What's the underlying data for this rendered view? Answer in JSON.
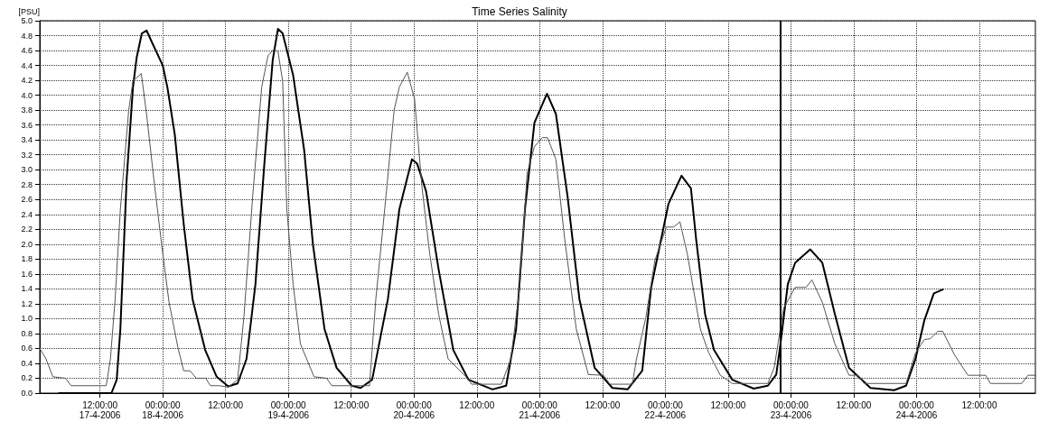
{
  "chart_data": {
    "type": "line",
    "title": "Time Series Salinity",
    "ylabel": "[PSU]",
    "xlim": [
      "2006-04-17T00:30",
      "2006-04-24T22:42"
    ],
    "xticks": [
      {
        "value": "2006-04-17T12:00",
        "label": "12:00:00\n17-4-2006"
      },
      {
        "value": "2006-04-18T00:00",
        "label": "00:00:00\n18-4-2006"
      },
      {
        "value": "2006-04-18T12:00",
        "label": "12:00:00"
      },
      {
        "value": "2006-04-19T00:00",
        "label": "00:00:00\n19-4-2006"
      },
      {
        "value": "2006-04-19T12:00",
        "label": "12:00:00"
      },
      {
        "value": "2006-04-20T00:00",
        "label": "00:00:00\n20-4-2006"
      },
      {
        "value": "2006-04-20T12:00",
        "label": "12:00:00"
      },
      {
        "value": "2006-04-21T00:00",
        "label": "00:00:00\n21-4-2006"
      },
      {
        "value": "2006-04-21T12:00",
        "label": "12:00:00"
      },
      {
        "value": "2006-04-22T00:00",
        "label": "00:00:00\n22-4-2006"
      },
      {
        "value": "2006-04-22T12:00",
        "label": "12:00:00"
      },
      {
        "value": "2006-04-23T00:00",
        "label": "00:00:00\n23-4-2006"
      },
      {
        "value": "2006-04-23T12:00",
        "label": "12:00:00"
      },
      {
        "value": "2006-04-24T00:00",
        "label": "00:00:00\n24-4-2006"
      },
      {
        "value": "2006-04-24T12:00",
        "label": "12:00:00"
      }
    ],
    "ylim": [
      0,
      5
    ],
    "yticks": [
      {
        "value": 0,
        "label": "0.0"
      },
      0.2,
      0.4,
      0.6,
      0.8,
      {
        "value": 1,
        "label": "1.0"
      },
      1.2,
      1.4,
      1.6,
      1.8,
      {
        "value": 2,
        "label": "2.0"
      },
      2.2,
      2.4,
      2.6,
      2.8,
      {
        "value": 3,
        "label": "3.0"
      },
      3.2,
      3.4,
      3.6,
      3.8,
      {
        "value": 4,
        "label": "4.0"
      },
      4.2,
      4.4,
      4.6,
      4.8,
      {
        "value": 5,
        "label": "5.0"
      }
    ],
    "grid": true,
    "marker": "none",
    "line_style": "solid",
    "ref_lines": [
      {
        "axis": "x",
        "value": "2006-04-22T21:54",
        "color": "#000000"
      }
    ],
    "series": [
      {
        "color": "#000000",
        "x": [
          "2006-04-17T04:12",
          "2006-04-17T14:12",
          "2006-04-17T15:12",
          "2006-04-17T15:54",
          "2006-04-17T17:06",
          "2006-04-17T18:18",
          "2006-04-17T19:00",
          "2006-04-17T20:00",
          "2006-04-17T20:54",
          "2006-04-17T22:00",
          "2006-04-18T00:00",
          "2006-04-18T00:54",
          "2006-04-18T02:18",
          "2006-04-18T04:00",
          "2006-04-18T05:42",
          "2006-04-18T08:06",
          "2006-04-18T10:18",
          "2006-04-18T12:30",
          "2006-04-18T14:18",
          "2006-04-18T16:00",
          "2006-04-18T17:42",
          "2006-04-18T19:24",
          "2006-04-18T21:00",
          "2006-04-18T22:00",
          "2006-04-18T22:54",
          "2006-04-19T00:54",
          "2006-04-19T03:00",
          "2006-04-19T04:42",
          "2006-04-19T06:54",
          "2006-04-19T09:12",
          "2006-04-19T12:06",
          "2006-04-19T13:48",
          "2006-04-19T16:00",
          "2006-04-19T19:00",
          "2006-04-19T21:12",
          "2006-04-19T23:36",
          "2006-04-20T00:36",
          "2006-04-20T02:18",
          "2006-04-20T04:42",
          "2006-04-20T07:30",
          "2006-04-20T10:24",
          "2006-04-20T15:00",
          "2006-04-20T17:36",
          "2006-04-20T19:30",
          "2006-04-20T21:12",
          "2006-04-20T23:00",
          "2006-04-21T01:24",
          "2006-04-21T03:06",
          "2006-04-21T05:18",
          "2006-04-21T07:36",
          "2006-04-21T10:30",
          "2006-04-21T13:54",
          "2006-04-21T16:48",
          "2006-04-21T19:36",
          "2006-04-21T21:18",
          "2006-04-22T00:36",
          "2006-04-22T03:06",
          "2006-04-22T04:54",
          "2006-04-22T05:54",
          "2006-04-22T07:36",
          "2006-04-22T09:18",
          "2006-04-22T12:48",
          "2006-04-22T16:54",
          "2006-04-22T19:36",
          "2006-04-22T21:12",
          "2006-04-22T22:00",
          "2006-04-22T23:24",
          "2006-04-23T00:48",
          "2006-04-23T03:42",
          "2006-04-23T06:00",
          "2006-04-23T08:24",
          "2006-04-23T11:06",
          "2006-04-23T15:12",
          "2006-04-23T19:42",
          "2006-04-23T22:00",
          "2006-04-23T23:48",
          "2006-04-24T01:30",
          "2006-04-24T03:18",
          "2006-04-24T05:00"
        ],
        "values": [
          0,
          0,
          0.18,
          0.86,
          2.87,
          4.1,
          4.5,
          4.83,
          4.87,
          4.7,
          4.4,
          4.1,
          3.47,
          2.27,
          1.26,
          0.58,
          0.22,
          0.09,
          0.13,
          0.46,
          1.46,
          3.07,
          4.47,
          4.89,
          4.83,
          4.27,
          3.27,
          1.99,
          0.86,
          0.34,
          0.1,
          0.07,
          0.18,
          1.26,
          2.47,
          3.14,
          3.08,
          2.71,
          1.66,
          0.58,
          0.18,
          0.05,
          0.1,
          0.86,
          2.47,
          3.63,
          4.02,
          3.75,
          2.66,
          1.26,
          0.34,
          0.07,
          0.05,
          0.3,
          1.42,
          2.54,
          2.92,
          2.75,
          2.06,
          1.06,
          0.58,
          0.18,
          0.06,
          0.1,
          0.25,
          0.66,
          1.46,
          1.75,
          1.93,
          1.75,
          1.06,
          0.34,
          0.07,
          0.04,
          0.1,
          0.46,
          0.98,
          1.34,
          1.39
        ]
      },
      {
        "color": "#555555",
        "x": [
          "2006-04-17T00:30",
          "2006-04-17T01:42",
          "2006-04-17T03:00",
          "2006-04-17T05:24",
          "2006-04-17T06:30",
          "2006-04-17T13:12",
          "2006-04-17T14:00",
          "2006-04-17T14:54",
          "2006-04-17T15:54",
          "2006-04-17T17:30",
          "2006-04-17T18:18",
          "2006-04-17T19:54",
          "2006-04-17T20:54",
          "2006-04-17T22:18",
          "2006-04-18T00:00",
          "2006-04-18T01:12",
          "2006-04-18T02:54",
          "2006-04-18T04:00",
          "2006-04-18T05:12",
          "2006-04-18T06:24",
          "2006-04-18T08:12",
          "2006-04-18T09:06",
          "2006-04-18T10:48",
          "2006-04-18T12:30",
          "2006-04-18T14:18",
          "2006-04-18T15:30",
          "2006-04-18T17:12",
          "2006-04-18T18:54",
          "2006-04-18T20:06",
          "2006-04-18T21:06",
          "2006-04-18T22:00",
          "2006-04-18T22:54",
          "2006-04-18T23:42",
          "2006-04-19T00:54",
          "2006-04-19T02:18",
          "2006-04-19T04:54",
          "2006-04-19T07:18",
          "2006-04-19T08:18",
          "2006-04-19T10:54",
          "2006-04-19T15:30",
          "2006-04-19T16:42",
          "2006-04-19T18:24",
          "2006-04-19T20:12",
          "2006-04-19T21:12",
          "2006-04-19T22:42",
          "2006-04-20T00:06",
          "2006-04-20T01:30",
          "2006-04-20T03:00",
          "2006-04-20T04:42",
          "2006-04-20T06:30",
          "2006-04-20T09:54",
          "2006-04-20T11:00",
          "2006-04-20T16:42",
          "2006-04-20T18:30",
          "2006-04-20T20:12",
          "2006-04-20T21:36",
          "2006-04-20T23:00",
          "2006-04-21T00:30",
          "2006-04-21T01:30",
          "2006-04-21T03:06",
          "2006-04-21T04:48",
          "2006-04-21T07:00",
          "2006-04-21T09:18",
          "2006-04-21T12:12",
          "2006-04-21T13:24",
          "2006-04-21T17:42",
          "2006-04-21T18:30",
          "2006-04-21T20:18",
          "2006-04-21T22:00",
          "2006-04-22T00:12",
          "2006-04-22T01:36",
          "2006-04-22T02:48",
          "2006-04-22T04:12",
          "2006-04-22T06:42",
          "2006-04-22T08:18",
          "2006-04-22T10:30",
          "2006-04-22T12:48",
          "2006-04-22T19:36",
          "2006-04-22T20:48",
          "2006-04-22T22:36",
          "2006-04-23T00:48",
          "2006-04-23T02:54",
          "2006-04-23T04:00",
          "2006-04-23T06:00",
          "2006-04-23T08:24",
          "2006-04-23T11:06",
          "2006-04-23T12:48",
          "2006-04-23T14:00",
          "2006-04-23T22:00",
          "2006-04-23T23:48",
          "2006-04-24T01:30",
          "2006-04-24T02:36",
          "2006-04-24T04:06",
          "2006-04-24T05:00",
          "2006-04-24T07:12",
          "2006-04-24T09:48",
          "2006-04-24T13:12",
          "2006-04-24T14:06",
          "2006-04-24T20:06",
          "2006-04-24T21:18",
          "2006-04-24T22:42"
        ],
        "values": [
          0.6,
          0.46,
          0.22,
          0.2,
          0.1,
          0.1,
          0.46,
          1.26,
          2.47,
          3.8,
          4.19,
          4.29,
          3.75,
          2.87,
          1.87,
          1.22,
          0.61,
          0.3,
          0.3,
          0.2,
          0.2,
          0.1,
          0.1,
          0.08,
          0.18,
          1.02,
          2.66,
          4.11,
          4.53,
          4.61,
          4.59,
          4.19,
          2.47,
          1.46,
          0.66,
          0.22,
          0.2,
          0.1,
          0.1,
          0.1,
          1.26,
          2.47,
          3.8,
          4.11,
          4.31,
          3.95,
          2.78,
          1.87,
          1.06,
          0.46,
          0.22,
          0.12,
          0.12,
          0.46,
          1.42,
          2.95,
          3.31,
          3.43,
          3.43,
          3.14,
          2.06,
          0.86,
          0.25,
          0.24,
          0.12,
          0.12,
          0.46,
          1.02,
          1.78,
          2.23,
          2.23,
          2.3,
          1.87,
          0.86,
          0.54,
          0.24,
          0.13,
          0.13,
          0.34,
          1.14,
          1.42,
          1.42,
          1.52,
          1.22,
          0.66,
          0.24,
          0.24,
          0.13,
          0.13,
          0.54,
          0.72,
          0.73,
          0.83,
          0.83,
          0.52,
          0.24,
          0.24,
          0.13,
          0.13,
          0.24,
          0.24
        ]
      }
    ]
  }
}
